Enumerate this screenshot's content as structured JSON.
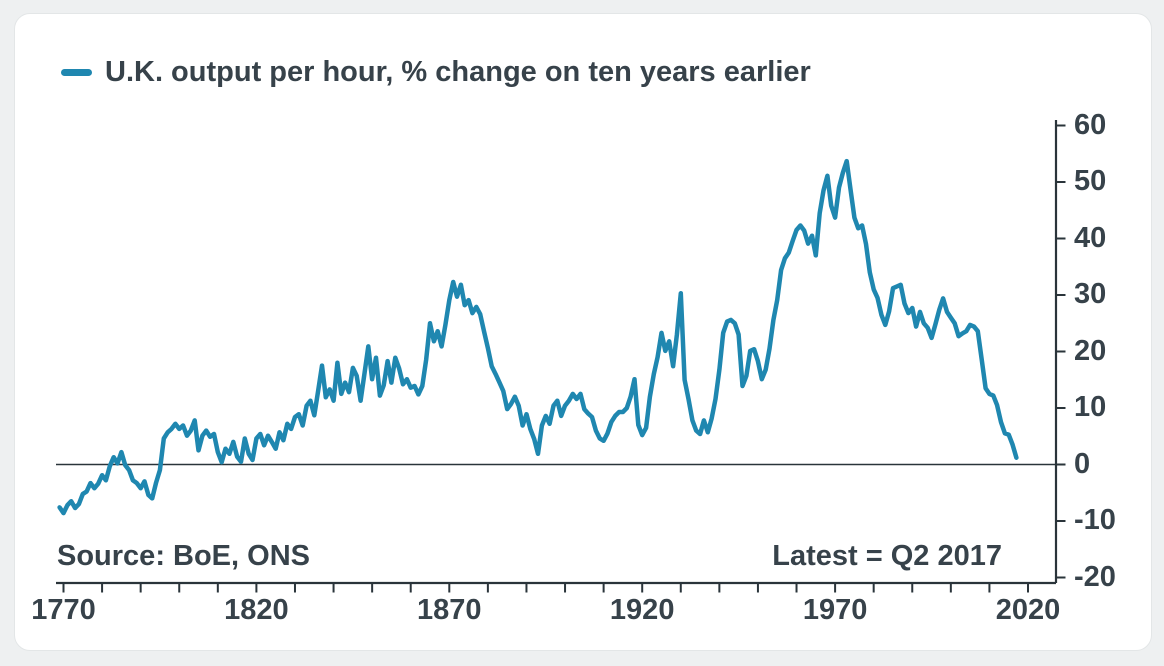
{
  "colors": {
    "accent_line": "#1f87b0",
    "text": "#37424a",
    "axis": "#2a343a",
    "card_background": "#ffffff",
    "page_background": "#eef0f1"
  },
  "legend": {
    "label": "U.K. output per hour, % change on ten years earlier",
    "line_color": "#1f87b0"
  },
  "footnotes": {
    "source": "Source: BoE, ONS",
    "latest": "Latest = Q2 2017"
  },
  "chart_data": {
    "type": "line",
    "title": "U.K. output per hour, % change on ten years earlier",
    "xlabel": "",
    "ylabel": "",
    "grid": false,
    "legend_position": "top-left",
    "zero_baseline": true,
    "y_axis_side": "right",
    "xlim": [
      1768,
      2027
    ],
    "ylim": [
      -20,
      60
    ],
    "x_axis": {
      "tick_start": 1770,
      "tick_end": 2020,
      "tick_interval": 10,
      "labeled_ticks": [
        1770,
        1820,
        1870,
        1920,
        1970,
        2020
      ]
    },
    "y_axis": {
      "ticks": [
        60,
        50,
        40,
        30,
        20,
        10,
        0,
        -10,
        -20
      ]
    },
    "series": [
      {
        "name": "U.K. output per hour, % change on ten years earlier",
        "color": "#1f87b0",
        "x_start": 1769,
        "x_step": 1,
        "x_end": 2017,
        "values": [
          -7.6,
          -8.6,
          -7.2,
          -6.5,
          -7.7,
          -7.0,
          -5.2,
          -4.8,
          -3.3,
          -4.2,
          -3.4,
          -1.9,
          -2.8,
          -0.3,
          1.3,
          0.2,
          2.2,
          -0.1,
          -1.0,
          -2.8,
          -3.3,
          -4.2,
          -3.0,
          -5.4,
          -6.0,
          -3.2,
          -1.0,
          4.6,
          5.7,
          6.3,
          7.2,
          6.3,
          6.9,
          5.1,
          6.0,
          7.8,
          2.5,
          5.1,
          6.0,
          4.9,
          5.4,
          2.2,
          0.4,
          2.8,
          1.9,
          4.0,
          1.4,
          0.5,
          4.6,
          1.9,
          0.8,
          4.6,
          5.4,
          3.4,
          5.1,
          4.0,
          2.8,
          5.7,
          4.3,
          7.2,
          6.3,
          8.4,
          8.9,
          6.9,
          10.4,
          11.3,
          8.7,
          13.0,
          17.5,
          11.9,
          13.3,
          11.3,
          18.0,
          12.5,
          14.5,
          12.8,
          17.1,
          15.7,
          11.3,
          16.0,
          20.9,
          15.1,
          18.9,
          12.2,
          14.0,
          18.3,
          14.5,
          18.9,
          17.0,
          14.2,
          15.1,
          13.6,
          13.9,
          12.4,
          13.9,
          18.6,
          25.0,
          21.8,
          23.6,
          20.9,
          24.7,
          29.1,
          32.3,
          29.7,
          31.8,
          28.2,
          29.1,
          26.8,
          27.9,
          26.6,
          23.6,
          20.6,
          17.4,
          16.0,
          14.5,
          13.0,
          9.8,
          10.7,
          12.0,
          10.4,
          6.9,
          8.9,
          6.3,
          4.5,
          1.9,
          6.9,
          8.6,
          7.2,
          10.4,
          11.3,
          8.6,
          10.4,
          11.3,
          12.5,
          11.6,
          12.5,
          9.8,
          9.0,
          8.4,
          6.0,
          4.6,
          4.2,
          5.5,
          7.5,
          8.6,
          9.3,
          9.3,
          10.0,
          12.0,
          15.1,
          7.0,
          5.2,
          6.5,
          12.0,
          16.0,
          19.0,
          23.3,
          20.1,
          21.8,
          17.4,
          23.0,
          30.3,
          15.0,
          11.6,
          7.8,
          6.0,
          5.4,
          7.8,
          5.7,
          8.1,
          11.6,
          16.8,
          23.3,
          25.3,
          25.6,
          25.0,
          23.0,
          13.9,
          15.7,
          20.1,
          20.4,
          18.3,
          15.1,
          16.8,
          20.5,
          25.6,
          29.1,
          34.4,
          36.5,
          37.5,
          39.6,
          41.5,
          42.3,
          41.4,
          39.1,
          40.5,
          37.0,
          44.5,
          48.5,
          51.1,
          45.8,
          43.7,
          49.0,
          51.6,
          53.7,
          48.7,
          43.7,
          41.8,
          42.3,
          39.0,
          34.0,
          31.0,
          29.5,
          26.5,
          24.7,
          27.1,
          31.2,
          31.5,
          31.8,
          28.5,
          26.8,
          27.7,
          24.4,
          27.0,
          25.0,
          24.2,
          22.4,
          24.8,
          27.4,
          29.4,
          27.0,
          26.0,
          25.0,
          22.7,
          23.2,
          23.6,
          24.7,
          24.4,
          23.6,
          18.6,
          13.5,
          12.5,
          12.2,
          10.5,
          7.5,
          5.5,
          5.3,
          3.5,
          1.2
        ]
      }
    ]
  }
}
